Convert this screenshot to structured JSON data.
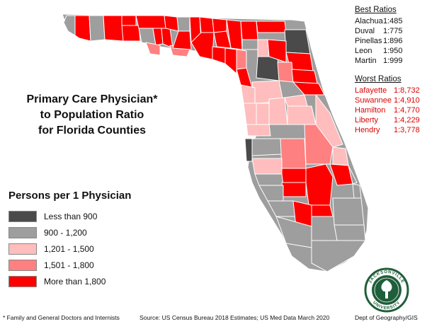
{
  "title": {
    "line1": "Primary Care Physician*",
    "line2": "to Population Ratio",
    "line3": "for Florida Counties"
  },
  "legend": {
    "title": "Persons per 1 Physician",
    "items": [
      {
        "label": "Less than 900",
        "color": "#4a4a4a"
      },
      {
        "label": "900 - 1,200",
        "color": "#9e9e9e"
      },
      {
        "label": "1,201 - 1,500",
        "color": "#ffbdbd"
      },
      {
        "label": "1,501 - 1,800",
        "color": "#ff8080"
      },
      {
        "label": "More than 1,800",
        "color": "#ff0000"
      }
    ]
  },
  "best_ratios": {
    "heading": "Best Ratios",
    "rows": [
      {
        "county": "Alachua",
        "ratio": "1:485"
      },
      {
        "county": "Duval",
        "ratio": "1:775"
      },
      {
        "county": "Pinellas",
        "ratio": "1:896"
      },
      {
        "county": "Leon",
        "ratio": "1:950"
      },
      {
        "county": "Martin",
        "ratio": "1:999"
      }
    ]
  },
  "worst_ratios": {
    "heading": "Worst Ratios",
    "rows": [
      {
        "county": "Lafayette",
        "ratio": "1:8,732"
      },
      {
        "county": "Suwannee",
        "ratio": "1:4,910"
      },
      {
        "county": "Hamilton",
        "ratio": "1:4,770"
      },
      {
        "county": "Liberty",
        "ratio": "1:4,229"
      },
      {
        "county": "Hendry",
        "ratio": "1:3,778"
      }
    ]
  },
  "footer": {
    "note": "* Family and General Doctors and Internists",
    "source": "Source: US Census Bureau 2018 Estimates; US Med Data March 2020",
    "credit": "Dept of Geography/GIS"
  },
  "seal": {
    "text": "JACKSONVILLE UNIVERSITY",
    "color": "#1f5e3a"
  },
  "county_colors": {
    "dark": "#4a4a4a",
    "gray": "#9e9e9e",
    "light": "#ffbdbd",
    "medium": "#ff8080",
    "red": "#ff0000",
    "border": "#ffffff"
  }
}
